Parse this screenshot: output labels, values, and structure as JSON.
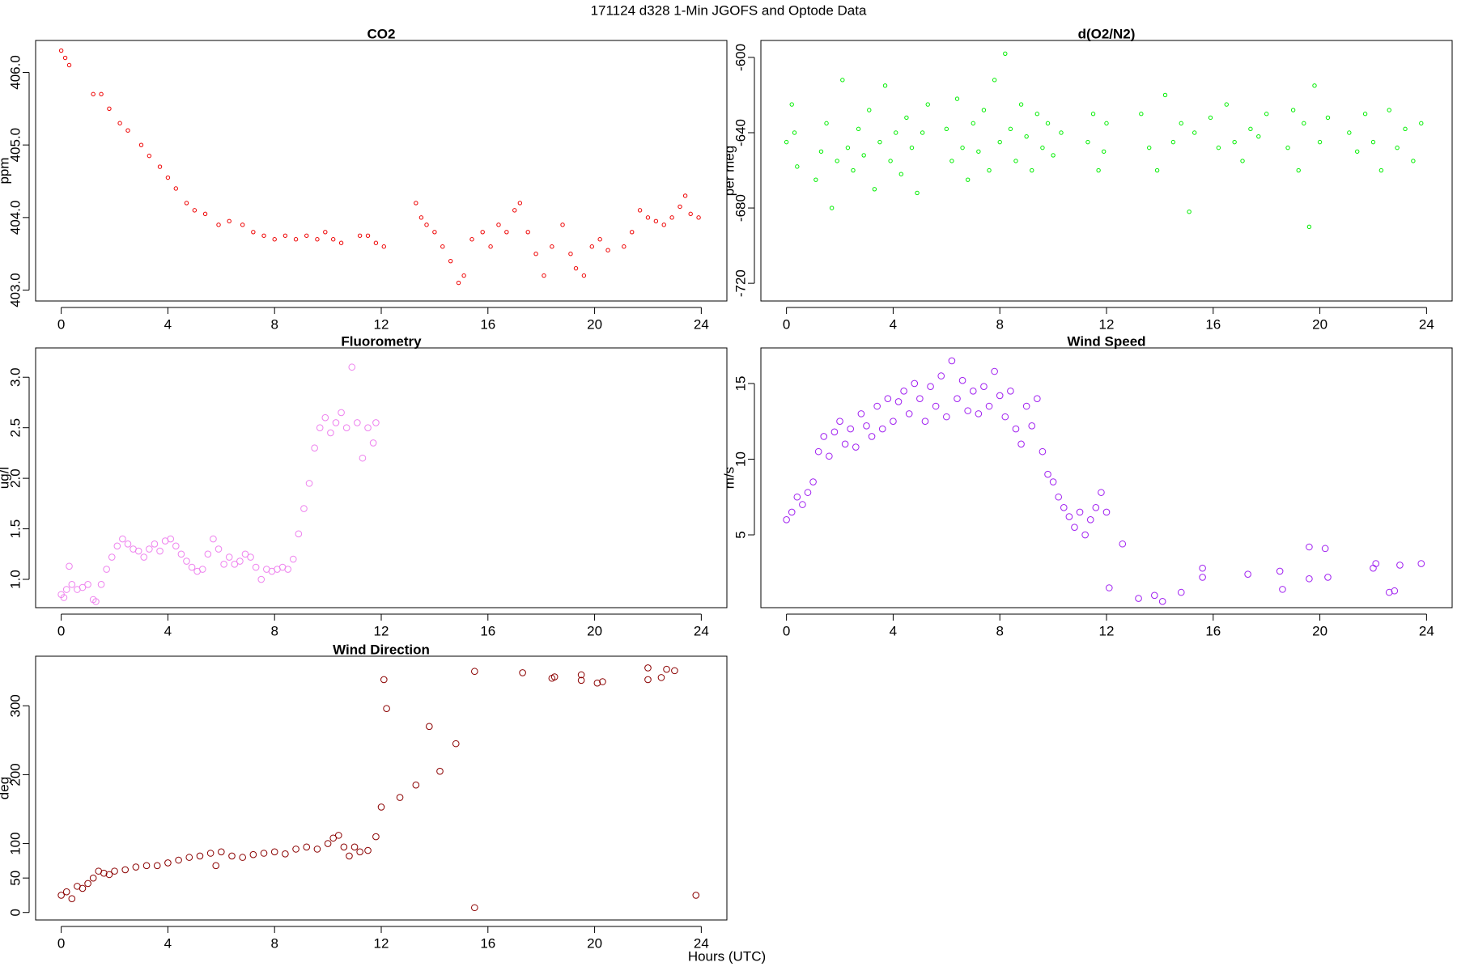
{
  "title": "171124   d328   1-Min  JGOFS and Optode Data",
  "xlabel": "Hours (UTC)",
  "chart_data": [
    {
      "type": "scatter",
      "title": "CO2",
      "ylabel": "ppm",
      "color": "#ee0000",
      "xlim": [
        -0.96,
        24.96
      ],
      "ylim": [
        402.85,
        406.44
      ],
      "xticks": [
        0,
        4,
        8,
        12,
        16,
        20,
        24
      ],
      "yticks": [
        {
          "value": 403,
          "label": "403.0"
        },
        {
          "value": 404,
          "label": "404.0"
        },
        {
          "value": 405,
          "label": "405.0"
        },
        {
          "value": 406,
          "label": "406.0"
        }
      ],
      "x": [
        0.0,
        0.15,
        0.3,
        1.2,
        1.5,
        1.8,
        2.2,
        2.5,
        3.0,
        3.3,
        3.7,
        4.0,
        4.3,
        4.7,
        5.0,
        5.4,
        5.9,
        6.3,
        6.8,
        7.2,
        7.6,
        8.0,
        8.4,
        8.8,
        9.2,
        9.6,
        9.9,
        10.2,
        10.5,
        11.2,
        11.5,
        11.8,
        12.1,
        13.3,
        13.5,
        13.7,
        14.0,
        14.3,
        14.6,
        14.9,
        15.1,
        15.4,
        15.8,
        16.1,
        16.4,
        16.7,
        17.0,
        17.2,
        17.5,
        17.8,
        18.1,
        18.4,
        18.8,
        19.1,
        19.3,
        19.6,
        19.9,
        20.2,
        20.5,
        21.1,
        21.4,
        21.7,
        22.0,
        22.3,
        22.6,
        22.9,
        23.2,
        23.4,
        23.6,
        23.9
      ],
      "y": [
        406.3,
        406.2,
        406.1,
        405.7,
        405.7,
        405.5,
        405.3,
        405.2,
        405.0,
        404.85,
        404.7,
        404.55,
        404.4,
        404.2,
        404.1,
        404.05,
        403.9,
        403.95,
        403.9,
        403.8,
        403.75,
        403.7,
        403.75,
        403.7,
        403.75,
        403.7,
        403.8,
        403.7,
        403.65,
        403.75,
        403.75,
        403.65,
        403.6,
        404.2,
        404.0,
        403.9,
        403.8,
        403.6,
        403.4,
        403.1,
        403.2,
        403.7,
        403.8,
        403.6,
        403.9,
        403.8,
        404.1,
        404.2,
        403.8,
        403.5,
        403.2,
        403.6,
        403.9,
        403.5,
        403.3,
        403.2,
        403.6,
        403.7,
        403.55,
        403.6,
        403.8,
        404.1,
        404.0,
        403.95,
        403.9,
        404.0,
        404.15,
        404.3,
        404.05,
        404.0
      ]
    },
    {
      "type": "scatter",
      "title": "d(O2/N2)",
      "ylabel": "per meg",
      "color": "#00ee00",
      "xlim": [
        -0.96,
        24.96
      ],
      "ylim": [
        -729.4,
        -591
      ],
      "xticks": [
        0,
        4,
        8,
        12,
        16,
        20,
        24
      ],
      "yticks": [
        -720,
        -680,
        -640,
        -600
      ],
      "x": [
        0.0,
        0.2,
        0.3,
        0.4,
        1.1,
        1.3,
        1.5,
        1.7,
        1.9,
        2.1,
        2.3,
        2.5,
        2.7,
        2.9,
        3.1,
        3.3,
        3.5,
        3.7,
        3.9,
        4.1,
        4.3,
        4.5,
        4.7,
        4.9,
        5.1,
        5.3,
        6.0,
        6.2,
        6.4,
        6.6,
        6.8,
        7.0,
        7.2,
        7.4,
        7.6,
        7.8,
        8.0,
        8.2,
        8.4,
        8.6,
        8.8,
        9.0,
        9.2,
        9.4,
        9.6,
        9.8,
        10.0,
        10.3,
        11.3,
        11.5,
        11.7,
        11.9,
        12.0,
        13.3,
        13.6,
        13.9,
        14.2,
        14.5,
        14.8,
        15.1,
        15.3,
        15.9,
        16.2,
        16.5,
        16.8,
        17.1,
        17.4,
        17.7,
        18.0,
        18.8,
        19.0,
        19.2,
        19.4,
        19.6,
        19.8,
        20.0,
        20.3,
        21.1,
        21.4,
        21.7,
        22.0,
        22.3,
        22.6,
        22.9,
        23.2,
        23.5,
        23.8
      ],
      "y": [
        -645,
        -625,
        -640,
        -658,
        -665,
        -650,
        -635,
        -680,
        -655,
        -612,
        -648,
        -660,
        -638,
        -652,
        -628,
        -670,
        -645,
        -615,
        -655,
        -640,
        -662,
        -632,
        -648,
        -672,
        -640,
        -625,
        -638,
        -655,
        -622,
        -648,
        -665,
        -635,
        -650,
        -628,
        -660,
        -612,
        -645,
        -598,
        -638,
        -655,
        -625,
        -642,
        -660,
        -630,
        -648,
        -635,
        -652,
        -640,
        -645,
        -630,
        -660,
        -650,
        -635,
        -630,
        -648,
        -660,
        -620,
        -645,
        -635,
        -682,
        -640,
        -632,
        -648,
        -625,
        -645,
        -655,
        -638,
        -642,
        -630,
        -648,
        -628,
        -660,
        -635,
        -690,
        -615,
        -645,
        -632,
        -640,
        -650,
        -630,
        -645,
        -660,
        -628,
        -648,
        -638,
        -655,
        -635
      ]
    },
    {
      "type": "scatter",
      "title": "Fluorometry",
      "ylabel": "ug/l",
      "color": "#ee82ee",
      "xlim": [
        -0.96,
        24.96
      ],
      "ylim": [
        0.72,
        3.29
      ],
      "xticks": [
        0,
        4,
        8,
        12,
        16,
        20,
        24
      ],
      "yticks": [
        {
          "value": 1,
          "label": "1.0"
        },
        1.5,
        {
          "value": 2,
          "label": "2.0"
        },
        2.5,
        {
          "value": 3,
          "label": "3.0"
        }
      ],
      "x": [
        0.0,
        0.1,
        0.2,
        0.3,
        0.4,
        0.6,
        0.8,
        1.0,
        1.2,
        1.3,
        1.5,
        1.7,
        1.9,
        2.1,
        2.3,
        2.5,
        2.7,
        2.9,
        3.1,
        3.3,
        3.5,
        3.7,
        3.9,
        4.1,
        4.3,
        4.5,
        4.7,
        4.9,
        5.1,
        5.3,
        5.5,
        5.7,
        5.9,
        6.1,
        6.3,
        6.5,
        6.7,
        6.9,
        7.1,
        7.3,
        7.5,
        7.7,
        7.9,
        8.1,
        8.3,
        8.5,
        8.7,
        8.9,
        9.1,
        9.3,
        9.5,
        9.7,
        9.9,
        10.1,
        10.3,
        10.5,
        10.7,
        10.9,
        11.1,
        11.3,
        11.5,
        11.7,
        11.8
      ],
      "y": [
        0.85,
        0.82,
        0.9,
        1.13,
        0.95,
        0.9,
        0.92,
        0.95,
        0.8,
        0.78,
        0.95,
        1.1,
        1.22,
        1.33,
        1.4,
        1.35,
        1.3,
        1.28,
        1.22,
        1.3,
        1.35,
        1.28,
        1.38,
        1.4,
        1.33,
        1.25,
        1.18,
        1.12,
        1.08,
        1.1,
        1.25,
        1.4,
        1.3,
        1.15,
        1.22,
        1.15,
        1.18,
        1.25,
        1.22,
        1.12,
        1.0,
        1.1,
        1.08,
        1.1,
        1.12,
        1.1,
        1.2,
        1.45,
        1.7,
        1.95,
        2.3,
        2.5,
        2.6,
        2.45,
        2.55,
        2.65,
        2.5,
        3.1,
        2.55,
        2.2,
        2.5,
        2.35,
        2.55
      ]
    },
    {
      "type": "scatter",
      "title": "Wind Speed",
      "ylabel": "m/s",
      "color": "#a020f0",
      "xlim": [
        -0.96,
        24.96
      ],
      "ylim": [
        0.19,
        17.35
      ],
      "xticks": [
        0,
        4,
        8,
        12,
        16,
        20,
        24
      ],
      "yticks": [
        5,
        10,
        15
      ],
      "x": [
        0.0,
        0.2,
        0.4,
        0.6,
        0.8,
        1.0,
        1.2,
        1.4,
        1.6,
        1.8,
        2.0,
        2.2,
        2.4,
        2.6,
        2.8,
        3.0,
        3.2,
        3.4,
        3.6,
        3.8,
        4.0,
        4.2,
        4.4,
        4.6,
        4.8,
        5.0,
        5.2,
        5.4,
        5.6,
        5.8,
        6.0,
        6.2,
        6.4,
        6.6,
        6.8,
        7.0,
        7.2,
        7.4,
        7.6,
        7.8,
        8.0,
        8.2,
        8.4,
        8.6,
        8.8,
        9.0,
        9.2,
        9.4,
        9.6,
        9.8,
        10.0,
        10.2,
        10.4,
        10.6,
        10.8,
        11.0,
        11.2,
        11.4,
        11.6,
        11.8,
        12.0,
        12.1,
        12.6,
        13.2,
        13.8,
        14.1,
        14.8,
        15.6,
        15.6,
        17.3,
        18.5,
        18.6,
        19.6,
        19.6,
        20.2,
        20.3,
        22.0,
        22.1,
        22.6,
        22.8,
        23.0,
        23.8
      ],
      "y": [
        6.0,
        6.5,
        7.5,
        7.0,
        7.8,
        8.5,
        10.5,
        11.5,
        10.2,
        11.8,
        12.5,
        11.0,
        12.0,
        10.8,
        13.0,
        12.2,
        11.5,
        13.5,
        12.0,
        14.0,
        12.5,
        13.8,
        14.5,
        13.0,
        15.0,
        14.0,
        12.5,
        14.8,
        13.5,
        15.5,
        12.8,
        16.5,
        14.0,
        15.2,
        13.2,
        14.5,
        13.0,
        14.8,
        13.5,
        15.8,
        14.2,
        12.8,
        14.5,
        12.0,
        11.0,
        13.5,
        12.2,
        14.0,
        10.5,
        9.0,
        8.5,
        7.5,
        6.8,
        6.2,
        5.5,
        6.5,
        5.0,
        6.0,
        6.8,
        7.8,
        6.5,
        1.5,
        4.4,
        0.8,
        1.0,
        0.6,
        1.2,
        2.8,
        2.2,
        2.4,
        2.6,
        1.4,
        4.2,
        2.1,
        4.1,
        2.2,
        2.8,
        3.1,
        1.2,
        1.3,
        3.0,
        3.1
      ]
    },
    {
      "type": "scatter",
      "title": "Wind Direction",
      "ylabel": "deg",
      "color": "#8b0000",
      "xlim": [
        -0.96,
        24.96
      ],
      "ylim": [
        -10.9,
        372
      ],
      "xticks": [
        0,
        4,
        8,
        12,
        16,
        20,
        24
      ],
      "yticks": [
        0,
        50,
        100,
        200,
        300
      ],
      "x": [
        0.0,
        0.2,
        0.4,
        0.6,
        0.8,
        1.0,
        1.2,
        1.4,
        1.6,
        1.8,
        2.0,
        2.4,
        2.8,
        3.2,
        3.6,
        4.0,
        4.4,
        4.8,
        5.2,
        5.6,
        5.8,
        6.0,
        6.4,
        6.8,
        7.2,
        7.6,
        8.0,
        8.4,
        8.8,
        9.2,
        9.6,
        10.0,
        10.2,
        10.4,
        10.6,
        10.8,
        11.0,
        11.2,
        11.5,
        11.8,
        12.0,
        12.1,
        12.2,
        12.7,
        13.3,
        13.8,
        14.2,
        14.8,
        15.5,
        15.5,
        17.3,
        18.4,
        18.5,
        19.5,
        19.5,
        20.1,
        20.3,
        22.0,
        22.0,
        22.5,
        22.7,
        23.0,
        23.8
      ],
      "y": [
        25,
        30,
        20,
        38,
        35,
        42,
        50,
        60,
        57,
        55,
        60,
        62,
        66,
        68,
        68,
        72,
        76,
        80,
        82,
        86,
        68,
        88,
        82,
        80,
        84,
        86,
        88,
        85,
        92,
        95,
        92,
        100,
        108,
        112,
        95,
        82,
        95,
        88,
        90,
        110,
        153,
        338,
        296,
        167,
        185,
        270,
        205,
        245,
        7,
        350,
        348,
        340,
        342,
        345,
        337,
        333,
        335,
        355,
        338,
        341,
        353,
        351,
        25
      ]
    }
  ]
}
